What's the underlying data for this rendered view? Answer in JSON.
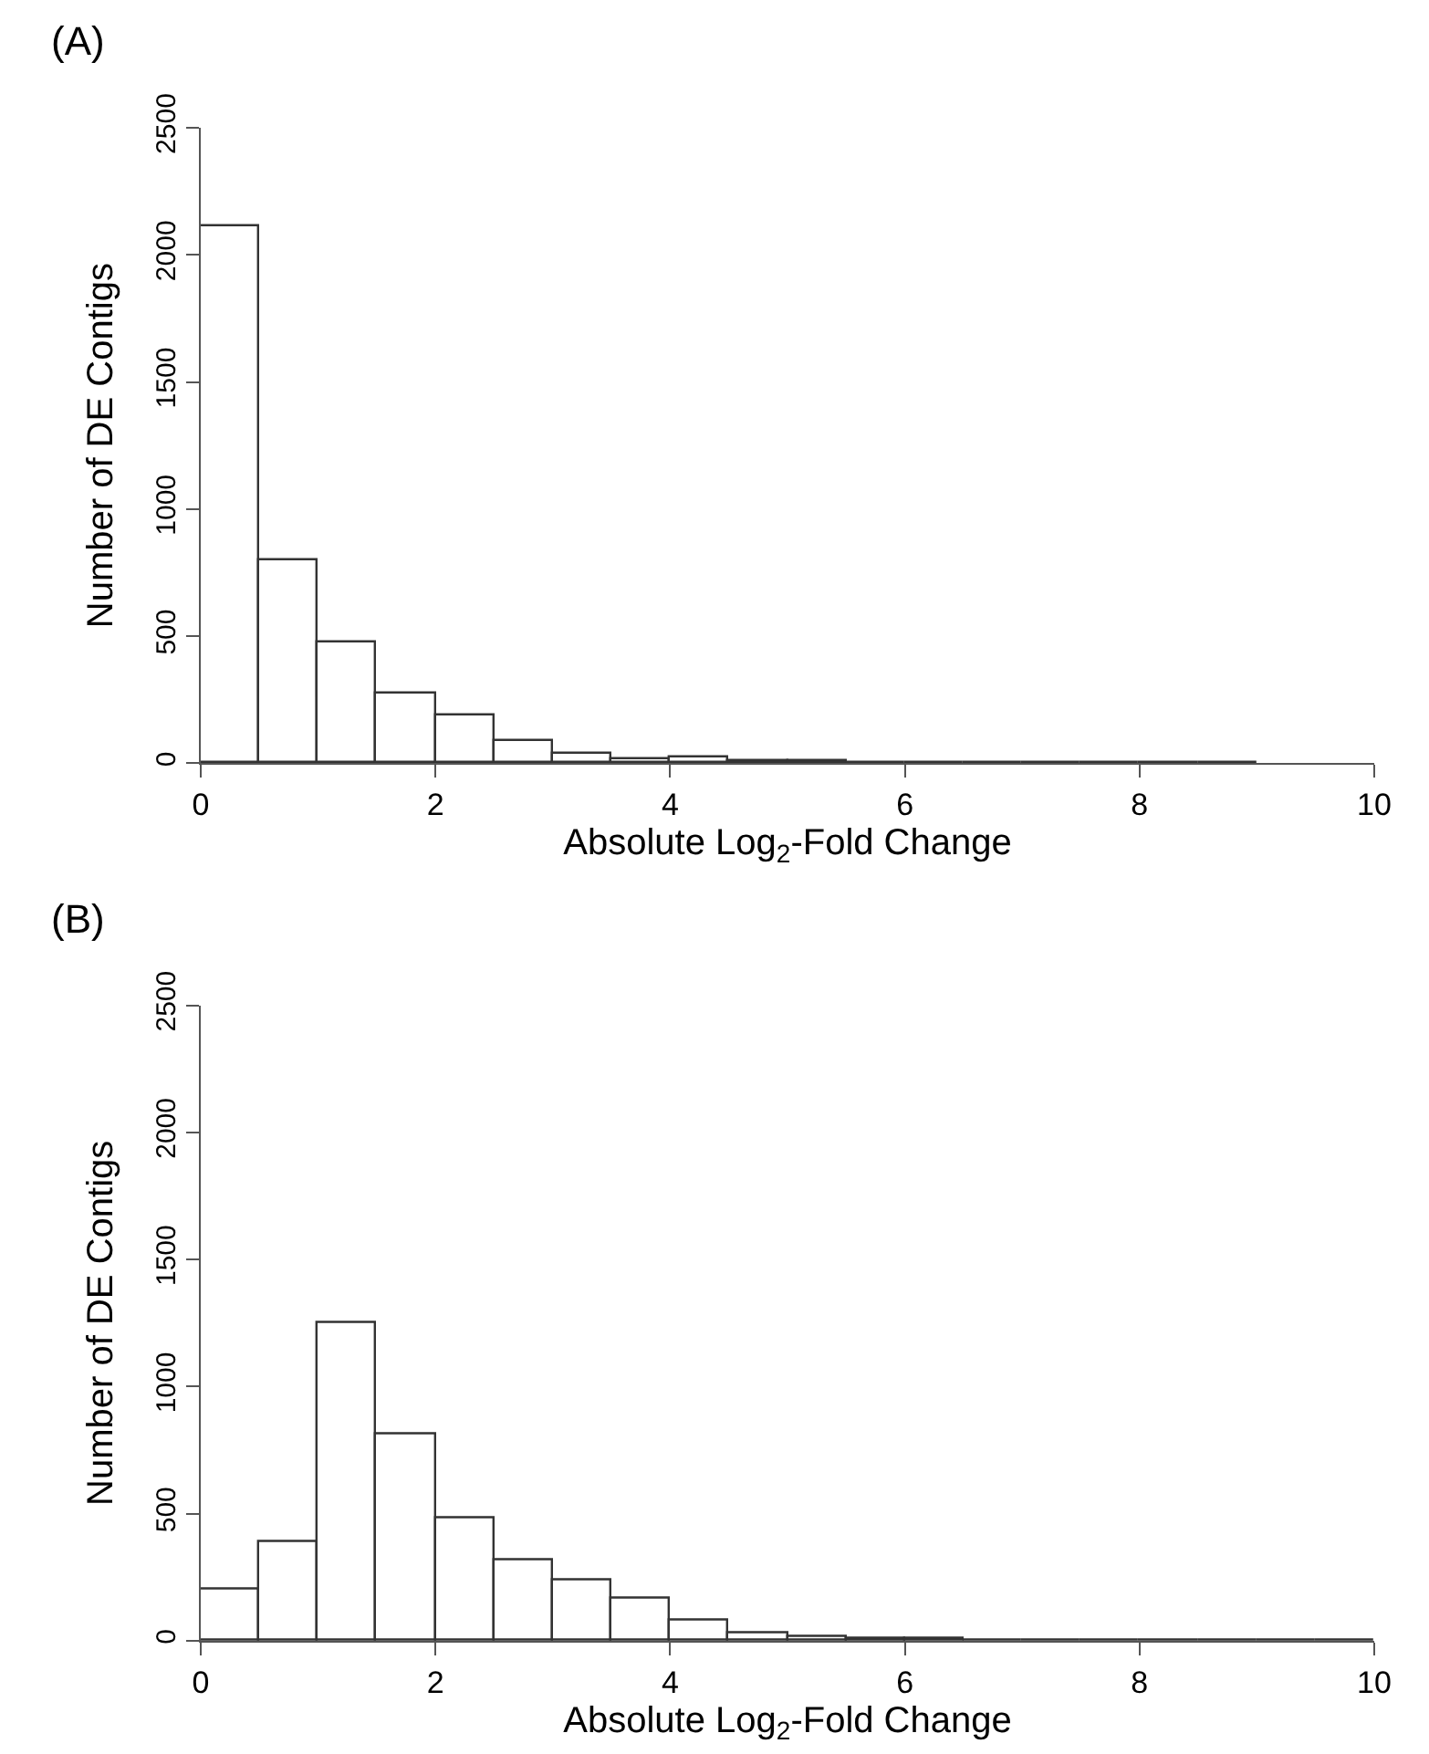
{
  "chart_data": [
    {
      "type": "histogram",
      "title": "(A)",
      "xlabel": "Absolute Log$_{2}$-Fold Change",
      "ylabel": "Number of DE Contigs",
      "bins": [
        0,
        0.5,
        1,
        1.5,
        2,
        2.5,
        3,
        3.5,
        4,
        4.5,
        5,
        5.5,
        6,
        6.5,
        7,
        7.5,
        8,
        8.5,
        9
      ],
      "values": [
        2110,
        795,
        475,
        275,
        190,
        85,
        40,
        15,
        20,
        10,
        5,
        3,
        3,
        3,
        2,
        2,
        1,
        1
      ],
      "xlim": [
        0,
        10
      ],
      "xticks": [
        0,
        2,
        4,
        6,
        8,
        10
      ],
      "ylim": [
        0,
        2500
      ],
      "yticks": [
        0,
        500,
        1000,
        1500,
        2000,
        2500
      ],
      "grid": false
    },
    {
      "type": "histogram",
      "title": "(B)",
      "xlabel": "Absolute Log$_{2}$-Fold Change",
      "ylabel": "Number of DE Contigs",
      "bins": [
        0,
        0.5,
        1,
        1.5,
        2,
        2.5,
        3,
        3.5,
        4,
        4.5,
        5,
        5.5,
        6,
        6.5,
        7,
        7.5,
        8,
        8.5,
        9,
        9.5,
        10
      ],
      "values": [
        205,
        390,
        1250,
        815,
        485,
        320,
        240,
        170,
        80,
        30,
        15,
        10,
        5,
        3,
        3,
        2,
        1,
        1,
        1,
        1
      ],
      "xlim": [
        0,
        10
      ],
      "xticks": [
        0,
        2,
        4,
        6,
        8,
        10
      ],
      "ylim": [
        0,
        2500
      ],
      "yticks": [
        0,
        500,
        1000,
        1500,
        2000,
        2500
      ],
      "grid": false
    }
  ]
}
